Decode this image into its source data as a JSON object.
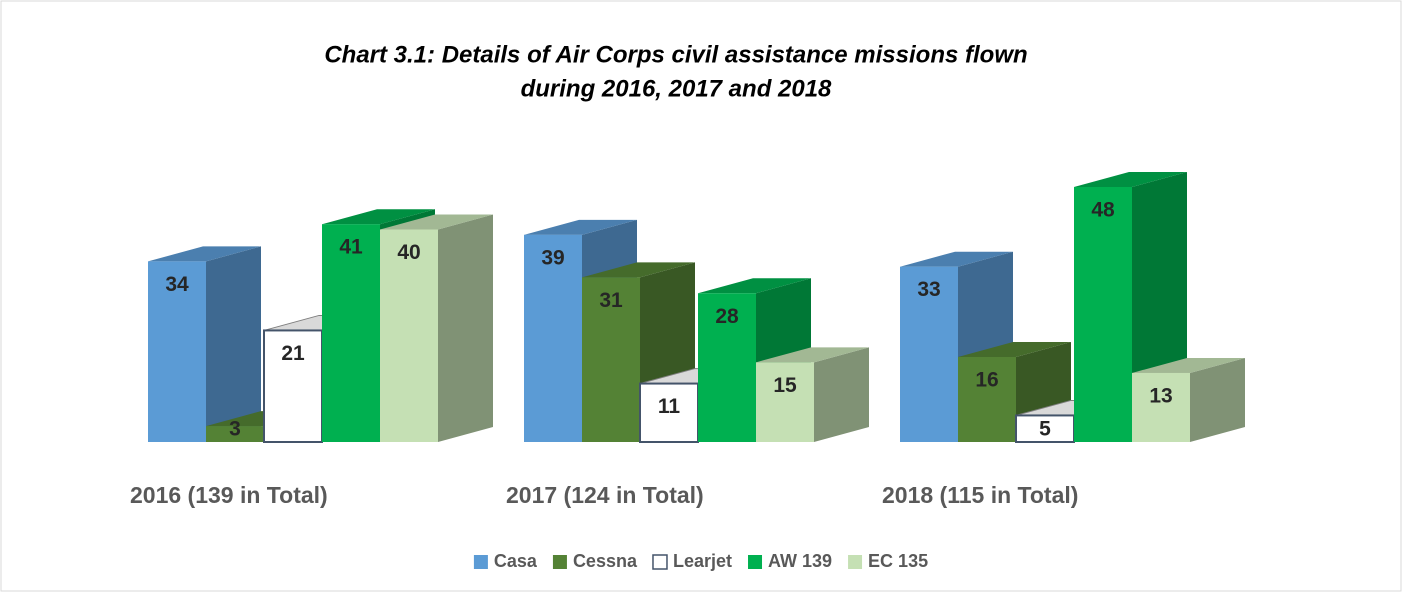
{
  "chart_data": {
    "type": "bar3d",
    "title": "Chart 3.1: Details of Air Corps civil assistance missions flown",
    "subtitle": "during 2016, 2017 and 2018",
    "categories": [
      "2016 (139 in Total)",
      "2017 (124 in Total)",
      "2018 (115 in Total)"
    ],
    "series": [
      {
        "name": "Casa",
        "color": "#5b9bd5",
        "values": [
          34,
          39,
          33
        ]
      },
      {
        "name": "Cessna",
        "color": "#548235",
        "values": [
          3,
          31,
          16
        ]
      },
      {
        "name": "Learjet",
        "color": "#ffffff",
        "values": [
          21,
          11,
          5
        ]
      },
      {
        "name": "AW 139",
        "color": "#00b050",
        "values": [
          41,
          28,
          48
        ]
      },
      {
        "name": "EC 135",
        "color": "#c5e0b4",
        "values": [
          40,
          15,
          13
        ]
      }
    ],
    "legend": "bottom"
  }
}
